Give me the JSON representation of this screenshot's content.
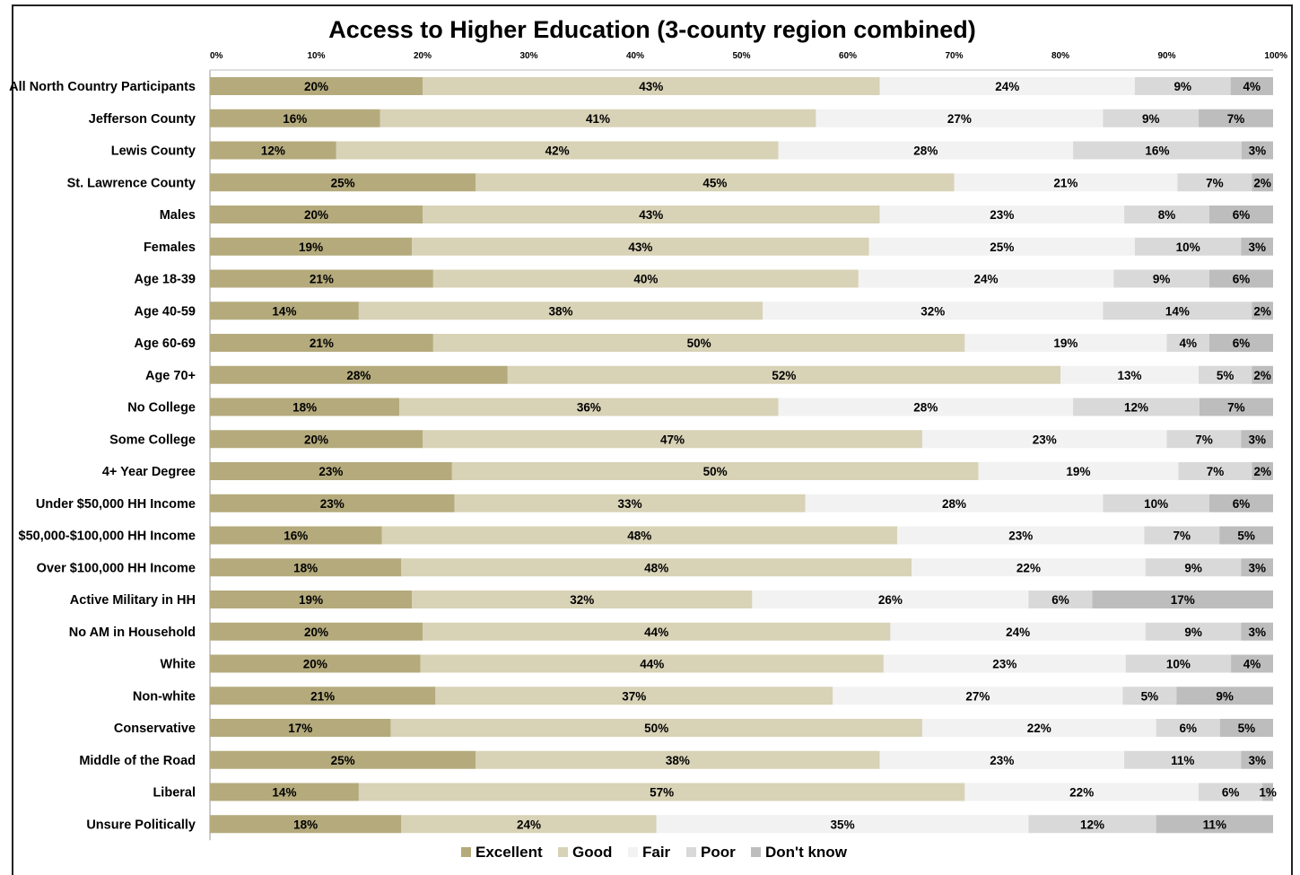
{
  "chart_data": {
    "type": "bar",
    "orientation": "horizontal",
    "stacked": true,
    "title": "Access to Higher Education (3-county region combined)",
    "xlim": [
      0,
      100
    ],
    "x_ticks": [
      "0%",
      "10%",
      "20%",
      "30%",
      "40%",
      "50%",
      "60%",
      "70%",
      "80%",
      "90%",
      "100%"
    ],
    "legend_position": "bottom",
    "grid": false,
    "categories": [
      "All North Country Participants",
      "Jefferson County",
      "Lewis County",
      "St. Lawrence County",
      "Males",
      "Females",
      "Age 18-39",
      "Age 40-59",
      "Age 60-69",
      "Age 70+",
      "No College",
      "Some College",
      "4+ Year Degree",
      "Under $50,000 HH Income",
      "$50,000-$100,000 HH Income",
      "Over $100,000 HH Income",
      "Active Military in HH",
      "No AM in Household",
      "White",
      "Non-white",
      "Conservative",
      "Middle of the Road",
      "Liberal",
      "Unsure Politically"
    ],
    "series": [
      {
        "name": "Excellent",
        "color": "#b4aa7c",
        "values": [
          20,
          16,
          12,
          25,
          20,
          19,
          21,
          14,
          21,
          28,
          18,
          20,
          23,
          23,
          16,
          18,
          19,
          20,
          20,
          21,
          17,
          25,
          14,
          18
        ],
        "labels": [
          "20%",
          "16%",
          "12%",
          "25%",
          "20%",
          "19%",
          "21%",
          "14%",
          "21%",
          "28%",
          "18%",
          "20%",
          "23%",
          "23%",
          "16%",
          "18%",
          "19%",
          "20%",
          "20%",
          "21%",
          "17%",
          "25%",
          "14%",
          "18%"
        ]
      },
      {
        "name": "Good",
        "color": "#d8d2b6",
        "values": [
          43,
          41,
          42,
          45,
          43,
          43,
          40,
          38,
          50,
          52,
          36,
          47,
          50,
          33,
          48,
          48,
          32,
          44,
          44,
          37,
          50,
          38,
          57,
          24
        ],
        "labels": [
          "43%",
          "41%",
          "42%",
          "45%",
          "43%",
          "43%",
          "40%",
          "38%",
          "50%",
          "52%",
          "36%",
          "47%",
          "50%",
          "33%",
          "48%",
          "48%",
          "32%",
          "44%",
          "44%",
          "37%",
          "50%",
          "38%",
          "57%",
          "24%"
        ]
      },
      {
        "name": "Fair",
        "color": "#f2f2f2",
        "values": [
          24,
          27,
          28,
          21,
          23,
          25,
          24,
          32,
          19,
          13,
          28,
          23,
          19,
          28,
          23,
          22,
          26,
          24,
          23,
          27,
          22,
          23,
          22,
          35
        ],
        "labels": [
          "24%",
          "27%",
          "28%",
          "21%",
          "23%",
          "25%",
          "24%",
          "32%",
          "19%",
          "13%",
          "28%",
          "23%",
          "19%",
          "28%",
          "23%",
          "22%",
          "26%",
          "24%",
          "23%",
          "27%",
          "22%",
          "23%",
          "22%",
          "35%"
        ]
      },
      {
        "name": "Poor",
        "color": "#d9d9d9",
        "values": [
          9,
          9,
          16,
          7,
          8,
          10,
          9,
          14,
          4,
          5,
          12,
          7,
          7,
          10,
          7,
          9,
          6,
          9,
          10,
          5,
          6,
          11,
          6,
          12
        ],
        "labels": [
          "9%",
          "9%",
          "16%",
          "7%",
          "8%",
          "10%",
          "9%",
          "14%",
          "4%",
          "5%",
          "12%",
          "7%",
          "7%",
          "10%",
          "7%",
          "9%",
          "6%",
          "9%",
          "10%",
          "5%",
          "6%",
          "11%",
          "6%",
          "12%"
        ]
      },
      {
        "name": "Don't know",
        "color": "#bdbdbd",
        "values": [
          4,
          7,
          3,
          2,
          6,
          3,
          6,
          2,
          6,
          2,
          7,
          3,
          2,
          6,
          5,
          3,
          17,
          3,
          4,
          9,
          5,
          3,
          1,
          11
        ],
        "labels": [
          "4%",
          "7%",
          "3%",
          "2%",
          "6%",
          "3%",
          "6%",
          "2%",
          "6%",
          "2%",
          "7%",
          "3%",
          "2%",
          "6%",
          "5%",
          "3%",
          "17%",
          "3%",
          "4%",
          "9%",
          "5%",
          "3%",
          "1%",
          "11%"
        ]
      }
    ]
  }
}
